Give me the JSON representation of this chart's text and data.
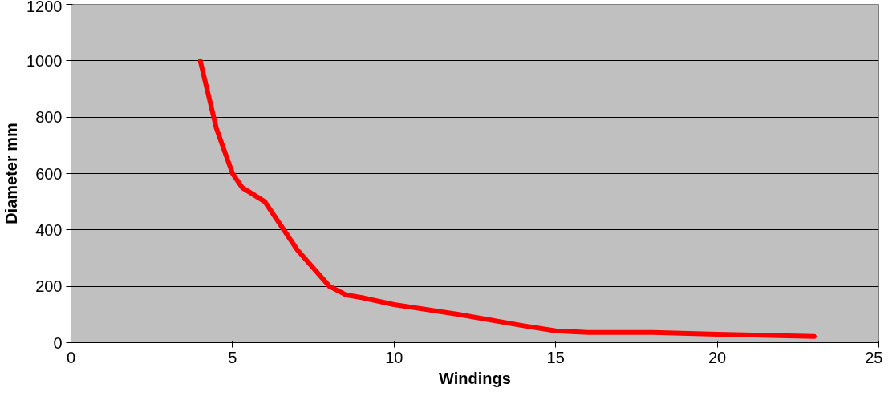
{
  "chart_data": {
    "type": "line",
    "xlabel": "Windings",
    "ylabel": "Diameter mm",
    "x": [
      4,
      4.5,
      5,
      5.3,
      6,
      7,
      8,
      8.5,
      9,
      10,
      12,
      14,
      15,
      16,
      18,
      20,
      23
    ],
    "series": [
      {
        "color": "#ff0000",
        "values": [
          1000,
          760,
          600,
          550,
          500,
          330,
          200,
          170,
          160,
          135,
          100,
          60,
          42,
          36,
          36,
          30,
          22
        ]
      }
    ],
    "xlim": [
      0,
      25
    ],
    "xticks": [
      0,
      5,
      10,
      15,
      20,
      25
    ],
    "ylim": [
      0,
      1200
    ],
    "yticks": [
      0,
      200,
      400,
      600,
      800,
      1000,
      1200
    ],
    "grid": "y",
    "marker": "none",
    "line_style": "solid"
  }
}
